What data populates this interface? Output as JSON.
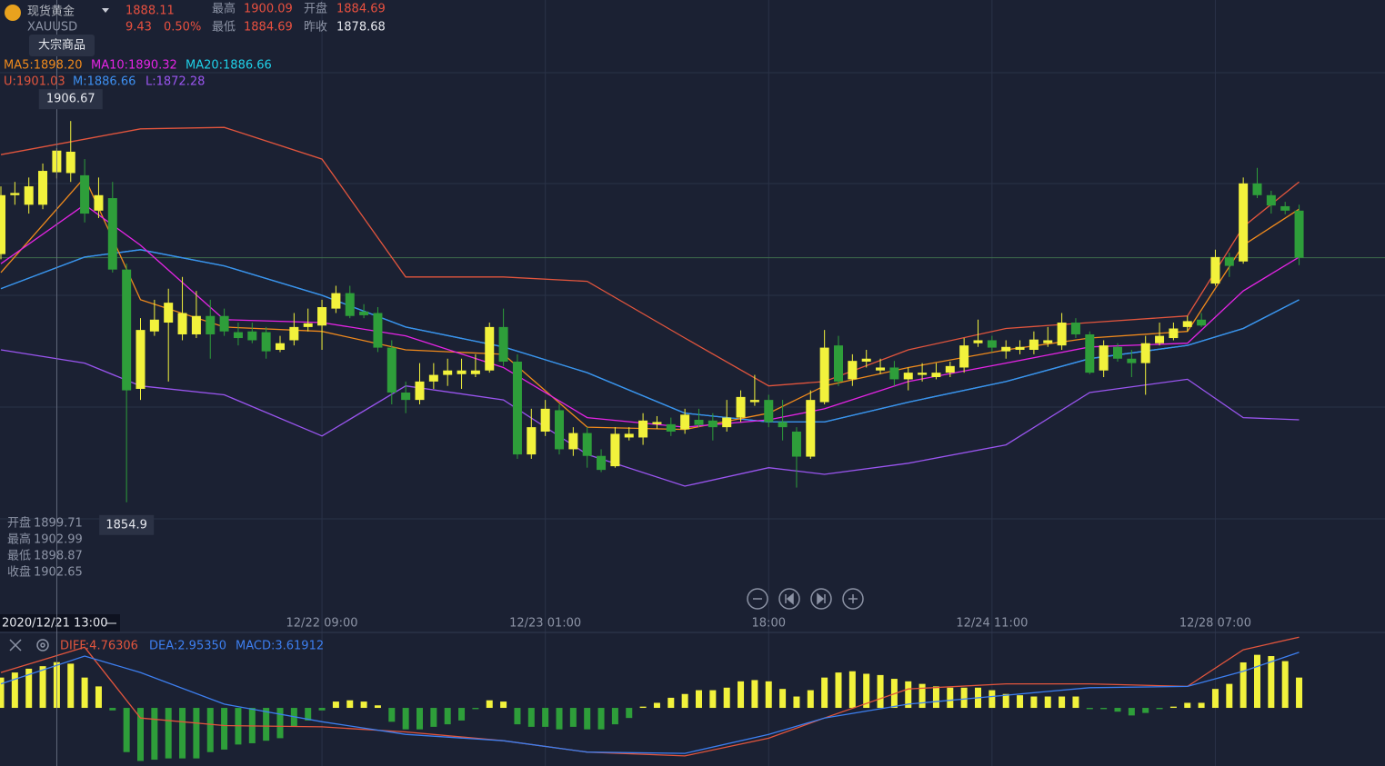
{
  "header": {
    "name": "现货黄金",
    "symbol": "XAUUSD",
    "tag": "大宗商品",
    "price": 1888.11,
    "change": 9.43,
    "change_percent": "0.50%",
    "stats": [
      {
        "label": "最高",
        "value": 1900.09
      },
      {
        "label": "开盘",
        "value": 1884.69
      },
      {
        "label": "最低",
        "value": 1884.69
      },
      {
        "label": "昨收",
        "value": 1878.68
      }
    ]
  },
  "chart_data": [
    {
      "type": "candlestick",
      "categories": [
        null,
        null,
        null,
        null,
        "2020/12/21 13:00",
        null,
        null,
        null,
        null,
        null,
        null,
        null,
        null,
        null,
        null,
        null,
        null,
        null,
        null,
        null,
        null,
        null,
        null,
        "12/22 09:00",
        null,
        null,
        null,
        null,
        null,
        null,
        null,
        null,
        null,
        null,
        null,
        null,
        null,
        null,
        null,
        "12/23 01:00",
        null,
        null,
        null,
        null,
        null,
        null,
        null,
        null,
        null,
        null,
        null,
        null,
        null,
        null,
        null,
        "18:00",
        null,
        null,
        null,
        null,
        null,
        null,
        null,
        null,
        null,
        null,
        null,
        null,
        null,
        null,
        null,
        "12/24 11:00",
        null,
        null,
        null,
        null,
        null,
        null,
        null,
        null,
        null,
        null,
        null,
        null,
        null,
        null,
        null,
        "12/28 07:00",
        null,
        null,
        null,
        null,
        null,
        null
      ],
      "selected_index": 4,
      "open": [
        1888.6,
        1896.6,
        1895.3,
        1895.3,
        1899.71,
        1899.6,
        1899.3,
        1894.5,
        1896.2,
        1886.5,
        1870.3,
        1878.1,
        1879.3,
        1877.7,
        1877.7,
        1880.2,
        1880.2,
        1878.0,
        1878.1,
        1878.0,
        1875.6,
        1876.9,
        1878.7,
        1878.9,
        1881.2,
        1883.3,
        1880.8,
        1880.6,
        1875.9,
        1869.8,
        1868.8,
        1871.3,
        1872.2,
        1872.3,
        1872.3,
        1872.8,
        1878.7,
        1874.0,
        1861.4,
        1864.5,
        1867.4,
        1862.1,
        1864.3,
        1861.2,
        1859.8,
        1863.7,
        1863.7,
        1865.5,
        1865.5,
        1864.8,
        1866.1,
        1866.0,
        1865.1,
        1866.4,
        1868.5,
        1868.8,
        1865.8,
        1864.5,
        1861.1,
        1868.5,
        1876.2,
        1871.6,
        1874.0,
        1872.8,
        1873.2,
        1871.6,
        1872.2,
        1871.9,
        1872.5,
        1873.2,
        1876.5,
        1876.9,
        1875.4,
        1875.6,
        1875.6,
        1876.5,
        1876.2,
        1879.3,
        1877.7,
        1872.8,
        1876.0,
        1874.4,
        1873.8,
        1876.5,
        1877.2,
        1878.7,
        1879.7,
        1884.6,
        1888.2,
        1887.6,
        1898.2,
        1896.6,
        1895.1,
        1894.5
      ],
      "high": [
        1897.8,
        1898.4,
        1899.0,
        1900.9,
        1902.99,
        1906.67,
        1901.5,
        1899.0,
        1898.4,
        1887.3,
        1879.9,
        1882.4,
        1883.9,
        1885.5,
        1883.6,
        1882.4,
        1881.2,
        1879.3,
        1879.3,
        1878.7,
        1877.5,
        1880.6,
        1881.2,
        1882.4,
        1884.3,
        1884.3,
        1881.8,
        1881.4,
        1876.9,
        1871.3,
        1873.8,
        1873.8,
        1874.4,
        1874.4,
        1875.0,
        1879.3,
        1881.2,
        1875.0,
        1867.6,
        1868.8,
        1868.2,
        1865.1,
        1865.1,
        1862.1,
        1865.1,
        1865.1,
        1867.0,
        1866.6,
        1866.4,
        1867.6,
        1867.6,
        1867.0,
        1868.8,
        1870.1,
        1872.2,
        1869.5,
        1868.8,
        1865.1,
        1870.1,
        1878.3,
        1877.5,
        1875.0,
        1875.6,
        1874.4,
        1874.1,
        1873.2,
        1873.8,
        1873.8,
        1874.0,
        1877.2,
        1879.7,
        1877.5,
        1876.9,
        1876.9,
        1878.1,
        1878.7,
        1880.6,
        1879.9,
        1878.1,
        1876.9,
        1876.5,
        1875.6,
        1877.5,
        1879.3,
        1879.3,
        1880.2,
        1880.6,
        1889.2,
        1888.8,
        1899.0,
        1900.3,
        1897.2,
        1895.7,
        1895.3
      ],
      "low": [
        1887.9,
        1895.3,
        1894.1,
        1894.7,
        1898.87,
        1898.4,
        1892.9,
        1893.5,
        1886.1,
        1854.9,
        1868.8,
        1877.5,
        1871.3,
        1876.9,
        1877.2,
        1874.4,
        1877.5,
        1876.2,
        1876.5,
        1874.4,
        1875.3,
        1876.2,
        1878.1,
        1875.6,
        1880.6,
        1879.9,
        1879.9,
        1875.3,
        1868.2,
        1867.0,
        1868.2,
        1870.3,
        1870.7,
        1870.3,
        1871.9,
        1872.5,
        1873.4,
        1860.8,
        1860.8,
        1863.9,
        1861.4,
        1861.2,
        1859.6,
        1859.0,
        1859.6,
        1863.3,
        1862.7,
        1864.9,
        1863.9,
        1864.2,
        1865.1,
        1863.3,
        1864.5,
        1865.8,
        1868.0,
        1865.1,
        1863.3,
        1856.9,
        1860.8,
        1868.2,
        1870.7,
        1870.7,
        1873.2,
        1872.3,
        1870.7,
        1870.1,
        1871.3,
        1871.6,
        1871.9,
        1872.5,
        1876.0,
        1875.3,
        1874.4,
        1875.0,
        1875.0,
        1876.0,
        1875.6,
        1877.2,
        1872.3,
        1871.9,
        1874.0,
        1871.9,
        1869.5,
        1876.2,
        1876.9,
        1878.1,
        1878.7,
        1884.3,
        1885.5,
        1887.3,
        1896.2,
        1894.1,
        1894.0,
        1887.1
      ],
      "close": [
        1896.6,
        1896.9,
        1897.8,
        1899.9,
        1902.65,
        1902.5,
        1894.1,
        1896.6,
        1886.5,
        1870.1,
        1878.3,
        1879.7,
        1882.0,
        1880.6,
        1880.2,
        1877.7,
        1878.1,
        1877.2,
        1876.9,
        1875.4,
        1876.5,
        1878.7,
        1879.2,
        1881.4,
        1883.3,
        1880.2,
        1880.3,
        1875.9,
        1869.8,
        1868.8,
        1871.3,
        1872.2,
        1872.8,
        1872.8,
        1872.8,
        1878.7,
        1874.0,
        1861.4,
        1865.1,
        1867.6,
        1862.1,
        1864.3,
        1861.2,
        1859.3,
        1864.2,
        1864.2,
        1866.0,
        1865.8,
        1864.5,
        1866.8,
        1865.4,
        1865.1,
        1866.4,
        1869.2,
        1868.8,
        1865.8,
        1865.1,
        1861.1,
        1868.8,
        1875.9,
        1871.3,
        1874.1,
        1874.4,
        1873.2,
        1871.6,
        1872.5,
        1872.5,
        1872.5,
        1873.4,
        1876.2,
        1876.9,
        1875.9,
        1876.0,
        1876.0,
        1877.0,
        1876.9,
        1879.3,
        1877.7,
        1872.5,
        1876.2,
        1874.4,
        1873.8,
        1876.5,
        1877.5,
        1878.5,
        1879.5,
        1878.9,
        1888.2,
        1887.0,
        1898.2,
        1896.6,
        1895.2,
        1894.5,
        1888.11
      ],
      "up_color": "#f2f23c",
      "down_color": "#2e9e3a",
      "ylim": [
        1839.7,
        1923.1
      ],
      "high_marker": 1906.67,
      "low_marker": 1854.9,
      "series": [
        {
          "name": "MA20:1886.66",
          "color": "#1fd1e8",
          "x": [
            0,
            6,
            10,
            16,
            23,
            29,
            36,
            42,
            49,
            55,
            59,
            65,
            72,
            78,
            85,
            89,
            93
          ],
          "values": [
            1883.9,
            1888.2,
            1889.2,
            1887.0,
            1883.0,
            1878.7,
            1876.0,
            1872.5,
            1867.0,
            1865.8,
            1865.8,
            1868.5,
            1871.3,
            1874.4,
            1876.2,
            1878.5,
            1882.4
          ]
        },
        {
          "name": "M:1886.66",
          "color": "#3d8ff0",
          "x": [
            0,
            6,
            10,
            16,
            23,
            29,
            36,
            42,
            49,
            55,
            59,
            65,
            72,
            78,
            85,
            89,
            93
          ],
          "values": [
            1883.9,
            1888.2,
            1889.2,
            1887.0,
            1883.0,
            1878.7,
            1876.0,
            1872.5,
            1867.0,
            1865.8,
            1865.8,
            1868.5,
            1871.3,
            1874.4,
            1876.2,
            1878.5,
            1882.4
          ]
        },
        {
          "name": "MA5:1898.20",
          "color": "#f08a1c",
          "x": [
            0,
            6,
            10,
            16,
            23,
            29,
            36,
            42,
            49,
            55,
            59,
            65,
            72,
            78,
            85,
            89,
            93
          ],
          "values": [
            1886.1,
            1899.0,
            1882.4,
            1878.7,
            1878.1,
            1875.6,
            1875.0,
            1865.1,
            1864.8,
            1867.0,
            1870.7,
            1873.2,
            1875.6,
            1877.2,
            1878.1,
            1889.8,
            1894.7
          ]
        },
        {
          "name": "MA10:1890.32",
          "color": "#e524e5",
          "x": [
            0,
            6,
            10,
            16,
            23,
            29,
            36,
            42,
            49,
            55,
            59,
            65,
            72,
            78,
            85,
            89,
            93
          ],
          "values": [
            1887.3,
            1895.3,
            1889.8,
            1879.7,
            1879.3,
            1877.5,
            1873.2,
            1866.4,
            1865.1,
            1866.1,
            1867.6,
            1871.3,
            1873.8,
            1876.0,
            1876.5,
            1883.6,
            1888.2
          ]
        },
        {
          "name": "U:1901.03",
          "color": "#e2553d",
          "x": [
            0,
            6,
            10,
            16,
            23,
            29,
            36,
            42,
            49,
            55,
            59,
            65,
            72,
            78,
            85,
            89,
            93
          ],
          "values": [
            1902.1,
            1904.2,
            1905.6,
            1905.8,
            1901.5,
            1885.5,
            1885.5,
            1884.9,
            1877.2,
            1870.7,
            1871.3,
            1875.6,
            1878.5,
            1879.3,
            1880.2,
            1892.3,
            1898.4
          ]
        },
        {
          "name": "L:1872.28",
          "color": "#9a55f0",
          "x": [
            0,
            6,
            10,
            16,
            23,
            29,
            36,
            42,
            49,
            55,
            59,
            65,
            72,
            78,
            85,
            89,
            93
          ],
          "values": [
            1875.6,
            1873.8,
            1870.7,
            1869.5,
            1863.9,
            1870.7,
            1868.8,
            1861.4,
            1857.1,
            1859.6,
            1858.7,
            1860.2,
            1862.7,
            1869.8,
            1871.6,
            1866.4,
            1866.1
          ]
        }
      ],
      "info": [
        {
          "label": "开盘",
          "value": 1899.71
        },
        {
          "label": "最高",
          "value": 1902.99
        },
        {
          "label": "最低",
          "value": 1898.87
        },
        {
          "label": "收盘",
          "value": 1902.65
        }
      ]
    },
    {
      "type": "macd",
      "name": "MACD:3.61912",
      "name_color": "#3d7ff0",
      "values": [
        2.4,
        2.8,
        3.1,
        3.3,
        3.61912,
        3.5,
        2.4,
        1.7,
        -0.2,
        -3.5,
        -4.2,
        -4.1,
        -4.0,
        -4.0,
        -4.0,
        -3.5,
        -3.3,
        -2.9,
        -2.8,
        -2.6,
        -2.4,
        -1.5,
        -1.0,
        -0.2,
        0.5,
        0.6,
        0.5,
        0.2,
        -1.1,
        -1.7,
        -1.7,
        -1.5,
        -1.3,
        -1.0,
        -0.1,
        0.6,
        0.5,
        -1.3,
        -1.5,
        -1.5,
        -1.7,
        -1.5,
        -1.7,
        -1.7,
        -1.3,
        -0.8,
        0.1,
        0.4,
        0.8,
        1.1,
        1.4,
        1.4,
        1.6,
        2.1,
        2.2,
        2.1,
        1.5,
        0.9,
        1.4,
        2.4,
        2.8,
        2.9,
        2.7,
        2.6,
        2.3,
        2.1,
        1.9,
        1.7,
        1.6,
        1.6,
        1.6,
        1.4,
        1.1,
        1.0,
        0.9,
        0.9,
        0.9,
        0.9,
        -0.1,
        -0.1,
        -0.3,
        -0.6,
        -0.4,
        -0.1,
        0.1,
        0.4,
        0.4,
        1.5,
        1.9,
        3.6,
        4.2,
        4.1,
        3.7,
        2.4
      ],
      "up_color": "#f2f23c",
      "down_color": "#2e9e3a",
      "ylim": [
        -4.6,
        5.9
      ],
      "series": [
        {
          "name": "DIFF:4.76306",
          "color": "#e2553d",
          "x": [
            0,
            6,
            10,
            16,
            23,
            29,
            36,
            42,
            49,
            55,
            59,
            65,
            72,
            78,
            85,
            89,
            93
          ],
          "values": [
            2.8,
            4.8,
            -0.8,
            -1.4,
            -1.5,
            -1.9,
            -2.6,
            -3.5,
            -3.8,
            -2.4,
            -0.8,
            1.5,
            1.9,
            1.9,
            1.7,
            4.6,
            5.6
          ]
        },
        {
          "name": "DEA:2.95350",
          "color": "#3d7ff0",
          "x": [
            0,
            6,
            10,
            16,
            23,
            29,
            36,
            42,
            49,
            55,
            59,
            65,
            72,
            78,
            85,
            89,
            93
          ],
          "values": [
            1.9,
            4.1,
            2.8,
            0.3,
            -1.1,
            -2.1,
            -2.6,
            -3.5,
            -3.6,
            -2.1,
            -0.8,
            0.3,
            1.0,
            1.6,
            1.7,
            2.9,
            4.4
          ]
        }
      ]
    }
  ]
}
